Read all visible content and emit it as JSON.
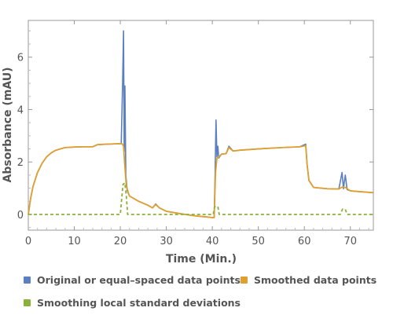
{
  "chart_data": {
    "type": "line",
    "xlabel": "Time  (Min.)",
    "ylabel": "Absorbance  (mAU)",
    "xlim": [
      0,
      75
    ],
    "ylim": [
      -0.6,
      7.4
    ],
    "xticks": [
      0,
      10,
      20,
      30,
      40,
      50,
      60,
      70
    ],
    "yticks": [
      0,
      2,
      4,
      6
    ],
    "grid": false,
    "legend_position": "bottom",
    "series": [
      {
        "name": "Original or equal-spaced data points",
        "color": "#5b7fbf",
        "style": "solid",
        "points": [
          [
            0,
            0
          ],
          [
            0.5,
            0.6
          ],
          [
            1,
            1.05
          ],
          [
            2,
            1.6
          ],
          [
            3,
            1.95
          ],
          [
            4,
            2.2
          ],
          [
            5,
            2.35
          ],
          [
            6,
            2.45
          ],
          [
            7,
            2.5
          ],
          [
            8,
            2.55
          ],
          [
            10,
            2.57
          ],
          [
            12,
            2.58
          ],
          [
            14,
            2.58
          ],
          [
            15,
            2.66
          ],
          [
            17,
            2.68
          ],
          [
            20.2,
            2.7
          ],
          [
            20.5,
            5.0
          ],
          [
            20.7,
            7.0
          ],
          [
            20.85,
            2.4
          ],
          [
            21.0,
            4.9
          ],
          [
            21.2,
            1.5
          ],
          [
            21.5,
            0.9
          ],
          [
            22,
            0.7
          ],
          [
            24,
            0.5
          ],
          [
            26,
            0.35
          ],
          [
            27,
            0.25
          ],
          [
            27.7,
            0.4
          ],
          [
            28.5,
            0.25
          ],
          [
            30,
            0.12
          ],
          [
            33,
            0.03
          ],
          [
            36,
            -0.05
          ],
          [
            39,
            -0.1
          ],
          [
            40,
            -0.12
          ],
          [
            40.4,
            -0.12
          ],
          [
            40.6,
            1.5
          ],
          [
            40.8,
            3.6
          ],
          [
            41.0,
            2.2
          ],
          [
            41.2,
            2.6
          ],
          [
            41.4,
            2.15
          ],
          [
            42,
            2.3
          ],
          [
            43,
            2.32
          ],
          [
            43.6,
            2.6
          ],
          [
            44.5,
            2.42
          ],
          [
            46,
            2.45
          ],
          [
            50,
            2.5
          ],
          [
            55,
            2.55
          ],
          [
            59,
            2.58
          ],
          [
            60.3,
            2.68
          ],
          [
            60.6,
            1.9
          ],
          [
            61,
            1.3
          ],
          [
            62,
            1.03
          ],
          [
            65,
            0.98
          ],
          [
            67.5,
            0.97
          ],
          [
            68.2,
            1.6
          ],
          [
            68.5,
            0.98
          ],
          [
            68.9,
            1.5
          ],
          [
            69.3,
            0.95
          ],
          [
            70,
            0.9
          ],
          [
            72,
            0.87
          ],
          [
            75,
            0.83
          ]
        ]
      },
      {
        "name": "Smoothed data points",
        "color": "#e0a030",
        "style": "solid",
        "points": [
          [
            0,
            0
          ],
          [
            0.5,
            0.6
          ],
          [
            1,
            1.05
          ],
          [
            2,
            1.6
          ],
          [
            3,
            1.95
          ],
          [
            4,
            2.2
          ],
          [
            5,
            2.35
          ],
          [
            6,
            2.45
          ],
          [
            7,
            2.5
          ],
          [
            8,
            2.55
          ],
          [
            10,
            2.57
          ],
          [
            12,
            2.58
          ],
          [
            14,
            2.58
          ],
          [
            15,
            2.66
          ],
          [
            17,
            2.68
          ],
          [
            20.4,
            2.7
          ],
          [
            20.7,
            2.6
          ],
          [
            21.0,
            1.8
          ],
          [
            21.3,
            1.1
          ],
          [
            21.7,
            0.85
          ],
          [
            22,
            0.7
          ],
          [
            24,
            0.5
          ],
          [
            26,
            0.35
          ],
          [
            27,
            0.25
          ],
          [
            27.7,
            0.38
          ],
          [
            28.5,
            0.25
          ],
          [
            30,
            0.12
          ],
          [
            33,
            0.03
          ],
          [
            36,
            -0.05
          ],
          [
            39,
            -0.1
          ],
          [
            40,
            -0.12
          ],
          [
            40.4,
            -0.12
          ],
          [
            40.7,
            1.6
          ],
          [
            41.0,
            2.15
          ],
          [
            41.5,
            2.2
          ],
          [
            42,
            2.3
          ],
          [
            43,
            2.32
          ],
          [
            43.6,
            2.55
          ],
          [
            44.5,
            2.42
          ],
          [
            46,
            2.45
          ],
          [
            50,
            2.5
          ],
          [
            55,
            2.55
          ],
          [
            59,
            2.58
          ],
          [
            60.3,
            2.62
          ],
          [
            60.6,
            1.9
          ],
          [
            61,
            1.3
          ],
          [
            62,
            1.03
          ],
          [
            65,
            0.98
          ],
          [
            67.5,
            0.97
          ],
          [
            68.3,
            1.05
          ],
          [
            69,
            1.02
          ],
          [
            70,
            0.9
          ],
          [
            72,
            0.87
          ],
          [
            75,
            0.83
          ]
        ]
      },
      {
        "name": "Smoothing local standard deviations",
        "color": "#8bb13a",
        "style": "dashed",
        "points": [
          [
            0,
            0
          ],
          [
            20,
            0
          ],
          [
            20.3,
            0.6
          ],
          [
            20.6,
            1.15
          ],
          [
            21.0,
            1.2
          ],
          [
            21.3,
            0.7
          ],
          [
            21.6,
            0
          ],
          [
            40.2,
            0
          ],
          [
            40.5,
            0.3
          ],
          [
            41.2,
            0.3
          ],
          [
            41.5,
            0
          ],
          [
            67.8,
            0
          ],
          [
            68.3,
            0.2
          ],
          [
            68.9,
            0.2
          ],
          [
            69.3,
            0
          ],
          [
            75,
            0
          ]
        ]
      }
    ]
  },
  "legend": {
    "original": "Original or equal–spaced data points",
    "smoothed": "Smoothed data points",
    "std": "Smoothing local standard deviations"
  }
}
